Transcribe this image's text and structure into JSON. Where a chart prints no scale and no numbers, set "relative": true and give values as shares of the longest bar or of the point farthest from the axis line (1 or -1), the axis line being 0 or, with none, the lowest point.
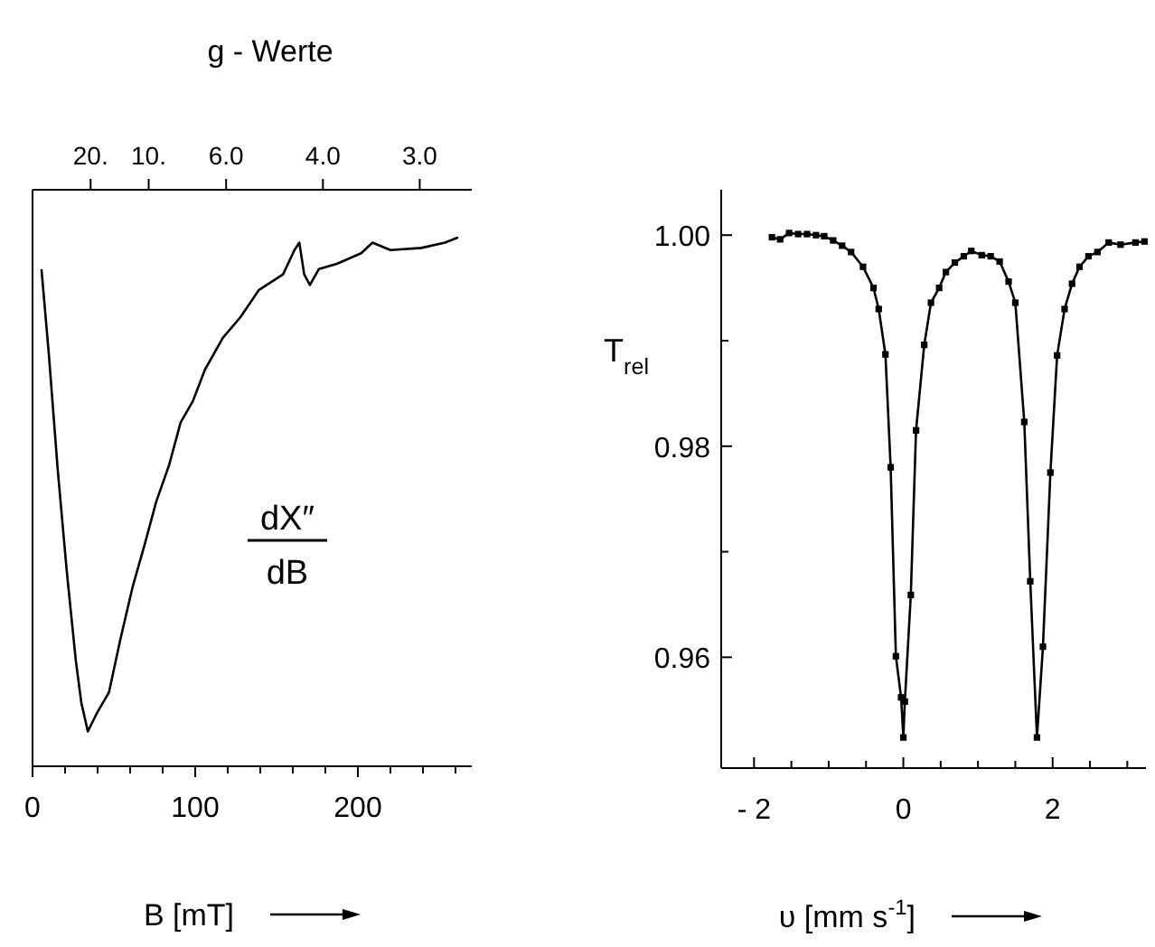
{
  "chart_data": [
    {
      "type": "line",
      "relative": true,
      "color": "#000000",
      "xlabel": "B [mT]",
      "x2label": "g - Werte",
      "annotations": [
        "dX″",
        "dB",
        {
          "text": "20.",
          "x": 35.7
        },
        {
          "text": "10.",
          "x": 71.4
        },
        {
          "text": "6.0",
          "x": 119
        },
        {
          "text": "4.0",
          "x": 178.5
        },
        {
          "text": "3.0",
          "x": 238
        }
      ],
      "xlim": [
        0,
        270
      ],
      "xticks": [
        0,
        {
          "value": 20,
          "label": null
        },
        {
          "value": 40,
          "label": null
        },
        {
          "value": 60,
          "label": null
        },
        {
          "value": 80,
          "label": null
        },
        100,
        {
          "value": 120,
          "label": null
        },
        {
          "value": 140,
          "label": null
        },
        {
          "value": 160,
          "label": null
        },
        {
          "value": 180,
          "label": null
        },
        200,
        {
          "value": 220,
          "label": null
        },
        {
          "value": 240,
          "label": null
        },
        {
          "value": 260,
          "label": null
        }
      ],
      "x": [
        5.5,
        10,
        15.5,
        21,
        26.6,
        30,
        34,
        39.5,
        47,
        54,
        61.6,
        69,
        76,
        84,
        91,
        98.5,
        106,
        117,
        128,
        139,
        154,
        161,
        164,
        167,
        170.5,
        176,
        187,
        202,
        209,
        220,
        239,
        253.5,
        261.6
      ],
      "values": [
        0.94,
        0.78,
        0.56,
        0.37,
        0.2,
        0.12,
        0.066,
        0.1,
        0.14,
        0.24,
        0.34,
        0.42,
        0.5,
        0.57,
        0.65,
        0.69,
        0.75,
        0.81,
        0.85,
        0.9,
        0.93,
        0.976,
        0.99,
        0.93,
        0.91,
        0.94,
        0.95,
        0.97,
        0.99,
        0.976,
        0.98,
        0.99,
        1.0
      ]
    },
    {
      "type": "line",
      "marker": "square",
      "color": "#000000",
      "xlabel": "υ [mm s$^{-1}$]",
      "ylabel": "T$_{rel}$",
      "xlim": [
        -2.44,
        3.25
      ],
      "xticks": [
        {
          "value": -2,
          "label": "- 2"
        },
        {
          "value": -1.5,
          "label": null
        },
        {
          "value": -1,
          "label": null
        },
        {
          "value": -0.5,
          "label": null
        },
        0,
        {
          "value": 0.5,
          "label": null
        },
        {
          "value": 1,
          "label": null
        },
        {
          "value": 1.5,
          "label": null
        },
        2,
        {
          "value": 2.5,
          "label": null
        },
        {
          "value": 3,
          "label": null
        }
      ],
      "ylim": [
        0.9495,
        1.0043
      ],
      "yticks": [
        {
          "value": 0.96,
          "label": "0.96"
        },
        {
          "value": 0.97,
          "label": null
        },
        {
          "value": 0.98,
          "label": "0.98"
        },
        {
          "value": 0.99,
          "label": null
        },
        {
          "value": 1,
          "label": "1.00"
        }
      ],
      "x": [
        -1.76,
        -1.65,
        -1.53,
        -1.41,
        -1.29,
        -1.17,
        -1.06,
        -0.94,
        -0.82,
        -0.7,
        -0.54,
        -0.4,
        -0.33,
        -0.24,
        -0.17,
        -0.1,
        -0.03,
        0,
        0.02,
        0.1,
        0.17,
        0.28,
        0.37,
        0.48,
        0.57,
        0.69,
        0.81,
        0.91,
        1.05,
        1.17,
        1.29,
        1.41,
        1.5,
        1.62,
        1.7,
        1.79,
        1.87,
        1.97,
        2.06,
        2.16,
        2.26,
        2.36,
        2.48,
        2.6,
        2.75,
        2.91,
        3.11,
        3.23
      ],
      "values": [
        0.9998,
        0.9996,
        1.0002,
        1.0001,
        1.0001,
        1.0,
        0.9999,
        0.9995,
        0.999,
        0.9984,
        0.997,
        0.995,
        0.993,
        0.9887,
        0.978,
        0.9601,
        0.9562,
        0.9524,
        0.9558,
        0.9659,
        0.9815,
        0.9896,
        0.9936,
        0.995,
        0.9965,
        0.9974,
        0.998,
        0.9985,
        0.9981,
        0.998,
        0.9975,
        0.9956,
        0.9936,
        0.9823,
        0.9672,
        0.9524,
        0.961,
        0.9775,
        0.9886,
        0.993,
        0.9954,
        0.997,
        0.998,
        0.9984,
        0.9993,
        0.9991,
        0.9993,
        0.9994
      ]
    }
  ]
}
